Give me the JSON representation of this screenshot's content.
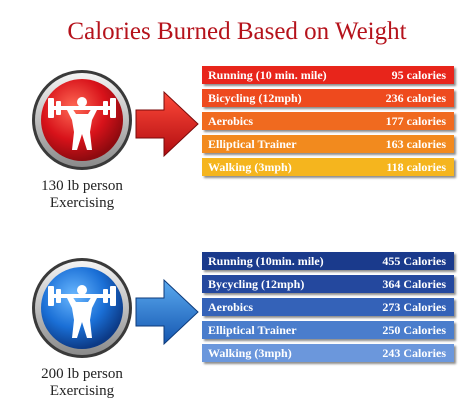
{
  "title": "Calories Burned Based on Weight",
  "groups": [
    {
      "person_label_line1": "130 lb person",
      "person_label_line2": "Exercising",
      "icon": "weightlifter-red-icon",
      "colors": [
        "#e8251b",
        "#ee4a1e",
        "#f06a1f",
        "#f28a1e",
        "#f5b51e"
      ],
      "rows": [
        {
          "activity": "Running (10 min. mile)",
          "calories": "95 calories"
        },
        {
          "activity": "Bicycling (12mph)",
          "calories": "236 calories"
        },
        {
          "activity": "Aerobics",
          "calories": "177 calories"
        },
        {
          "activity": "Elliptical Trainer",
          "calories": "163 calories"
        },
        {
          "activity": "Walking (3mph)",
          "calories": "118 calories"
        }
      ]
    },
    {
      "person_label_line1": "200 lb person",
      "person_label_line2": "Exercising",
      "icon": "weightlifter-blue-icon",
      "colors": [
        "#1a3a8c",
        "#24489e",
        "#3462b8",
        "#4a7dcc",
        "#6b97dc"
      ],
      "rows": [
        {
          "activity": "Running (10min. mile)",
          "calories": "455 Calories"
        },
        {
          "activity": "Bycycling (12mph)",
          "calories": "364 Calories"
        },
        {
          "activity": "Aerobics",
          "calories": "273 Calories"
        },
        {
          "activity": "Elliptical Trainer",
          "calories": "250 Calories"
        },
        {
          "activity": "Walking (3mph)",
          "calories": "243 Calories"
        }
      ]
    }
  ]
}
